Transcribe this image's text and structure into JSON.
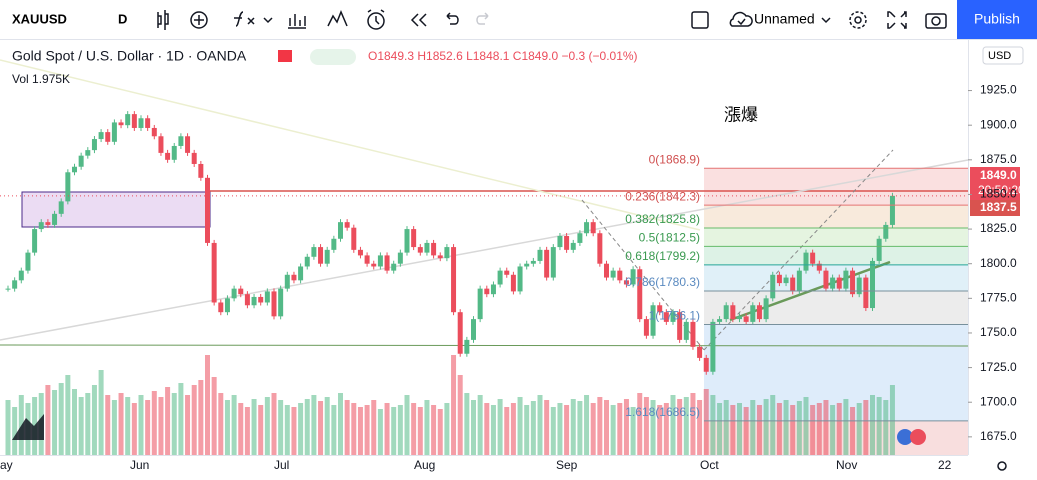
{
  "toolbar": {
    "symbol": "XAUUSD",
    "interval": "D",
    "layout_name": "Unnamed",
    "publish": "Publish"
  },
  "chart_data": {
    "type": "candlestick",
    "legend": {
      "title": "Gold Spot / U.S. Dollar · 1D · OANDA",
      "ohlc": "O1849.3 H1852.6 L1848.1 C1849.0 −0.3 (−0.01%)",
      "volume": "Vol 1.975K"
    },
    "annotation": "漲爆",
    "currency": "USD",
    "last_price": "1849.0",
    "countdown": "20:50:20",
    "line_price": "1837.5",
    "up_color": "#53b987",
    "down_color": "#eb4d5c",
    "ylim": [
      1661.9,
      1961.5
    ],
    "yticks": [
      {
        "value": 1925,
        "label": "1925.0"
      },
      {
        "value": 1900,
        "label": "1900.0"
      },
      {
        "value": 1875,
        "label": "1875.0"
      },
      {
        "value": 1850,
        "label": "1850.0"
      },
      {
        "value": 1825,
        "label": "1825.0"
      },
      {
        "value": 1800,
        "label": "1800.0"
      },
      {
        "value": 1775,
        "label": "1775.0"
      },
      {
        "value": 1750,
        "label": "1750.0"
      },
      {
        "value": 1725,
        "label": "1725.0"
      },
      {
        "value": 1700,
        "label": "1700.0"
      },
      {
        "value": 1675,
        "label": "1675.0"
      }
    ],
    "time_labels": [
      "ay",
      "Jun",
      "Jul",
      "Aug",
      "Sep",
      "Oct",
      "Nov",
      "22"
    ],
    "close": [
      1782,
      1788,
      1795,
      1808,
      1825,
      1830,
      1828,
      1836,
      1845,
      1866,
      1870,
      1878,
      1882,
      1890,
      1895,
      1888,
      1902,
      1900,
      1908,
      1898,
      1905,
      1898,
      1892,
      1880,
      1875,
      1885,
      1892,
      1880,
      1872,
      1862,
      1815,
      1772,
      1765,
      1775,
      1782,
      1778,
      1770,
      1776,
      1772,
      1780,
      1762,
      1782,
      1792,
      1788,
      1798,
      1805,
      1812,
      1800,
      1810,
      1818,
      1830,
      1826,
      1810,
      1806,
      1800,
      1798,
      1806,
      1795,
      1800,
      1808,
      1825,
      1812,
      1808,
      1815,
      1806,
      1804,
      1812,
      1765,
      1735,
      1745,
      1760,
      1782,
      1778,
      1785,
      1795,
      1792,
      1780,
      1798,
      1800,
      1802,
      1810,
      1790,
      1812,
      1820,
      1810,
      1815,
      1822,
      1830,
      1822,
      1800,
      1790,
      1795,
      1788,
      1785,
      1796,
      1760,
      1748,
      1770,
      1765,
      1758,
      1765,
      1745,
      1758,
      1740,
      1732,
      1722,
      1758,
      1760,
      1770,
      1760,
      1762,
      1758,
      1770,
      1760,
      1775,
      1792,
      1786,
      1790,
      1780,
      1795,
      1808,
      1800,
      1795,
      1782,
      1790,
      1782,
      1795,
      1778,
      1790,
      1768,
      1802,
      1818,
      1828,
      1849
    ],
    "volume": [
      55,
      48,
      60,
      52,
      58,
      62,
      70,
      65,
      72,
      80,
      66,
      58,
      62,
      70,
      85,
      60,
      55,
      62,
      58,
      52,
      60,
      55,
      64,
      58,
      68,
      62,
      72,
      60,
      70,
      75,
      100,
      78,
      62,
      55,
      60,
      52,
      48,
      56,
      50,
      58,
      62,
      55,
      50,
      48,
      52,
      56,
      60,
      54,
      58,
      50,
      62,
      55,
      52,
      48,
      50,
      55,
      46,
      52,
      48,
      50,
      60,
      52,
      48,
      55,
      50,
      46,
      52,
      100,
      80,
      62,
      55,
      60,
      52,
      50,
      56,
      48,
      52,
      58,
      50,
      54,
      60,
      55,
      48,
      52,
      50,
      56,
      54,
      60,
      52,
      58,
      55,
      50,
      52,
      56,
      48,
      62,
      58,
      55,
      50,
      52,
      60,
      56,
      58,
      62,
      55,
      66,
      60,
      52,
      55,
      50,
      52,
      48,
      55,
      50,
      56,
      60,
      52,
      55,
      50,
      54,
      58,
      50,
      52,
      55,
      50,
      52,
      56,
      48,
      52,
      55,
      60,
      58,
      55,
      70
    ],
    "fib_levels": [
      {
        "value": 1868.9,
        "label": "0(1868.9)",
        "color": "#f8d6d6"
      },
      {
        "value": 1842.3,
        "label": "0.236(1842.3)",
        "color": "#f6e3d0"
      },
      {
        "value": 1825.8,
        "label": "0.382(1825.8)",
        "color": "#dcf0d6"
      },
      {
        "value": 1812.5,
        "label": "0.5(1812.5)",
        "color": "#d2eedd"
      },
      {
        "value": 1799.2,
        "label": "0.618(1799.2)",
        "color": "#d6ebf5"
      },
      {
        "value": 1780.3,
        "label": "0.786(1780.3)",
        "color": "#e6e6e6"
      },
      {
        "value": 1756.1,
        "label": "1(1756.1)",
        "color": "#d3e5f8"
      },
      {
        "value": 1686.5,
        "label": "1.618(1686.5)",
        "color": "#f6d3d3"
      }
    ]
  }
}
